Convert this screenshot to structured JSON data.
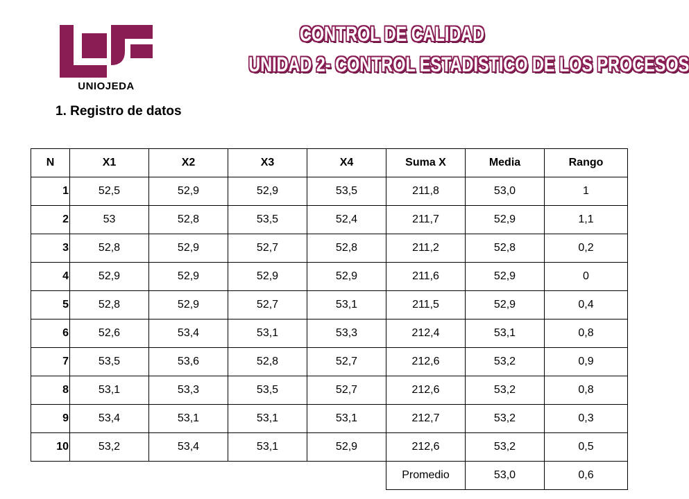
{
  "logo": {
    "text": "UNIOJEDA",
    "icon": "unioejda-logo-icon",
    "color": "#8b1d55"
  },
  "title": {
    "line1": "CONTROL DE CALIDAD",
    "line2": "UNIDAD 2- CONTROL ESTADISTICO DE LOS PROCESOS",
    "color": "#8b1d55"
  },
  "section": {
    "heading": "1. Registro de datos"
  },
  "table": {
    "headers": [
      "N",
      "X1",
      "X2",
      "X3",
      "X4",
      "Suma X",
      "Media",
      "Rango"
    ],
    "rows": [
      [
        "1",
        "52,5",
        "52,9",
        "52,9",
        "53,5",
        "211,8",
        "53,0",
        "1"
      ],
      [
        "2",
        "53",
        "52,8",
        "53,5",
        "52,4",
        "211,7",
        "52,9",
        "1,1"
      ],
      [
        "3",
        "52,8",
        "52,9",
        "52,7",
        "52,8",
        "211,2",
        "52,8",
        "0,2"
      ],
      [
        "4",
        "52,9",
        "52,9",
        "52,9",
        "52,9",
        "211,6",
        "52,9",
        "0"
      ],
      [
        "5",
        "52,8",
        "52,9",
        "52,7",
        "53,1",
        "211,5",
        "52,9",
        "0,4"
      ],
      [
        "6",
        "52,6",
        "53,4",
        "53,1",
        "53,3",
        "212,4",
        "53,1",
        "0,8"
      ],
      [
        "7",
        "53,5",
        "53,6",
        "52,8",
        "52,7",
        "212,6",
        "53,2",
        "0,9"
      ],
      [
        "8",
        "53,1",
        "53,3",
        "53,5",
        "52,7",
        "212,6",
        "53,2",
        "0,8"
      ],
      [
        "9",
        "53,4",
        "53,1",
        "53,1",
        "53,1",
        "212,7",
        "53,2",
        "0,3"
      ],
      [
        "10",
        "53,2",
        "53,4",
        "53,1",
        "52,9",
        "212,6",
        "53,2",
        "0,5"
      ]
    ],
    "footer": {
      "label": "Promedio",
      "media": "53,0",
      "rango": "0,6"
    }
  }
}
